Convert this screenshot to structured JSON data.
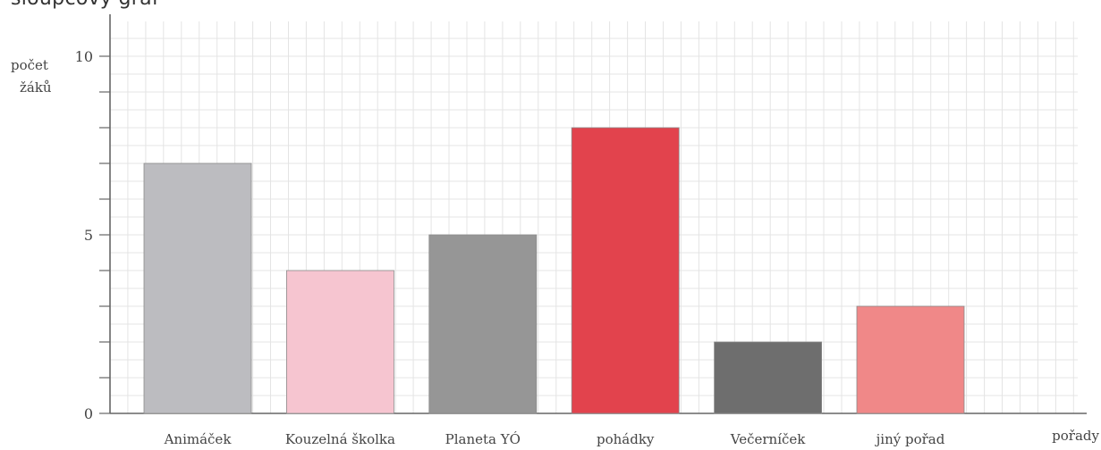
{
  "chart_data": {
    "type": "bar",
    "title": "sloupcový graf",
    "ylabel": [
      "počet",
      "žáků"
    ],
    "xlabel": "pořady",
    "categories": [
      "Animáček",
      "Kouzelná školka",
      "Planeta YÓ",
      "pohádky",
      "Večerníček",
      "jiný pořad"
    ],
    "values": [
      7,
      4,
      5,
      8,
      2,
      3
    ],
    "ylim": [
      0,
      10
    ],
    "yticks": [
      0,
      5,
      10
    ],
    "grid": true,
    "colors": {
      "bars": [
        "#bcbcc0",
        "#f6c5d0",
        "#969696",
        "#e2434d",
        "#6e6e6e",
        "#f08888"
      ],
      "grid": "#e4e4e4",
      "axis": "#666666"
    }
  }
}
